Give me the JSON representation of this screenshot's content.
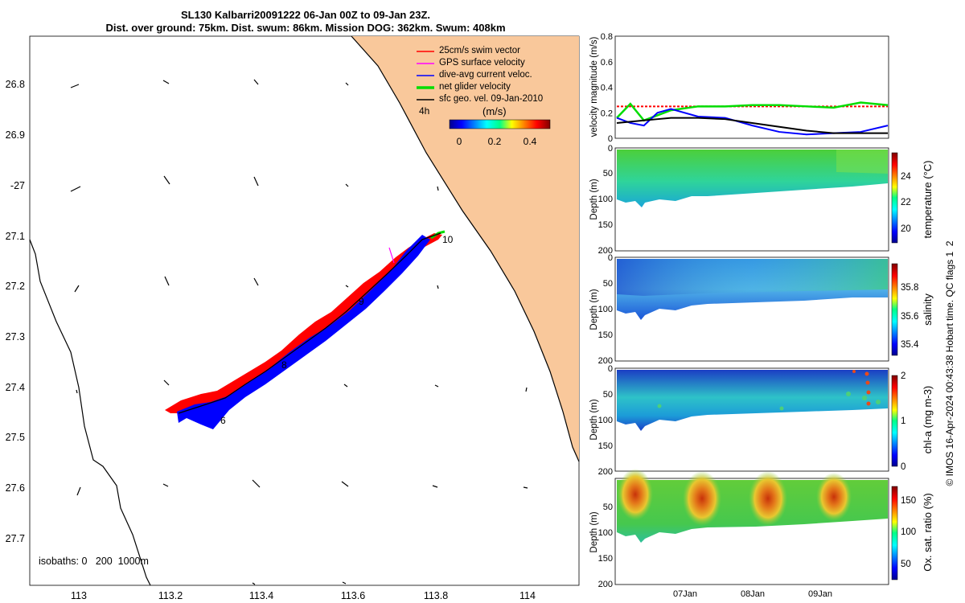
{
  "header": {
    "title_line1": "SL130 Kalbarri20091222 06-Jan 00Z to 09-Jan 23Z.",
    "title_line2": "Dist. over ground: 75km. Dist. swum: 86km. Mission DOG: 362km. Swum: 408km"
  },
  "map": {
    "legend": [
      {
        "label": "25cm/s swim vector",
        "color": "#ff0000"
      },
      {
        "label": "GPS surface velocity",
        "color": "#ff00ff"
      },
      {
        "label": "dive-avg current veloc.",
        "color": "#0000ff"
      },
      {
        "label": "net glider velocity",
        "color": "#00dd00"
      },
      {
        "label": "sfc geo. vel. 09-Jan-2010",
        "color": "#000000"
      }
    ],
    "time_label": "4h",
    "colorbar_unit": "(m/s)",
    "colorbar_ticks": [
      "0",
      "0.2",
      "0.4"
    ],
    "isobaths_label": "isobaths: 0   200  1000m",
    "lon_ticks": [
      "113",
      "113.2",
      "113.4",
      "113.6",
      "113.8",
      "114"
    ],
    "lat_ticks": [
      "26.8",
      "26.9",
      "-27",
      "27.1",
      "27.2",
      "27.3",
      "27.4",
      "27.5",
      "27.6",
      "27.7"
    ],
    "day_markers": [
      "6",
      "8",
      "9",
      "10"
    ],
    "land_color": "#f9c89b"
  },
  "chart_data": [
    {
      "type": "line",
      "title": "",
      "ylabel": "velocity magnitude (m/s)",
      "ylim": [
        0,
        0.8
      ],
      "yticks": [
        "0",
        "0.2",
        "0.4",
        "0.6",
        "0.8"
      ],
      "x": [
        0,
        0.05,
        0.1,
        0.15,
        0.2,
        0.3,
        0.4,
        0.5,
        0.6,
        0.7,
        0.8,
        0.9,
        1.0
      ],
      "series": [
        {
          "name": "swim speed",
          "color": "#ff0000",
          "values": [
            0.25,
            0.25,
            0.25,
            0.25,
            0.25,
            0.25,
            0.25,
            0.25,
            0.25,
            0.25,
            0.25,
            0.25,
            0.25
          ]
        },
        {
          "name": "net glider velocity",
          "color": "#00dd00",
          "values": [
            0.16,
            0.27,
            0.14,
            0.18,
            0.22,
            0.25,
            0.25,
            0.26,
            0.26,
            0.25,
            0.24,
            0.28,
            0.26
          ]
        },
        {
          "name": "dive-avg current",
          "color": "#0000ff",
          "values": [
            0.16,
            0.12,
            0.1,
            0.2,
            0.23,
            0.17,
            0.16,
            0.1,
            0.05,
            0.03,
            0.04,
            0.05,
            0.1
          ]
        },
        {
          "name": "sfc geo. vel.",
          "color": "#000000",
          "values": [
            0.12,
            0.13,
            0.14,
            0.15,
            0.16,
            0.16,
            0.15,
            0.12,
            0.09,
            0.06,
            0.04,
            0.04,
            0.04
          ]
        }
      ]
    },
    {
      "type": "heatmap",
      "ylabel": "Depth (m)",
      "yticks": [
        "0",
        "50",
        "100",
        "150",
        "200"
      ],
      "colorbar_label": "temperature (°C)",
      "colorbar_ticks": [
        "20",
        "22",
        "24"
      ]
    },
    {
      "type": "heatmap",
      "ylabel": "Depth (m)",
      "yticks": [
        "0",
        "50",
        "100",
        "150",
        "200"
      ],
      "colorbar_label": "salinity",
      "colorbar_ticks": [
        "35.4",
        "35.6",
        "35.8"
      ]
    },
    {
      "type": "heatmap",
      "ylabel": "Depth (m)",
      "yticks": [
        "0",
        "50",
        "100",
        "150",
        "200"
      ],
      "colorbar_label": "chl-a (mg m-3)",
      "colorbar_ticks": [
        "0",
        "1",
        "2"
      ]
    },
    {
      "type": "heatmap",
      "ylabel": "Depth (m)",
      "yticks": [
        "50",
        "100",
        "150",
        "200"
      ],
      "colorbar_label": "Ox. sat. ratio (%)",
      "colorbar_ticks": [
        "50",
        "100",
        "150"
      ],
      "xticks": [
        "07Jan",
        "08Jan",
        "09Jan"
      ]
    }
  ],
  "footer": {
    "credit": "© IMOS 16-Apr-2024 00:43:38 Hobart time. QC flags 1  2"
  }
}
